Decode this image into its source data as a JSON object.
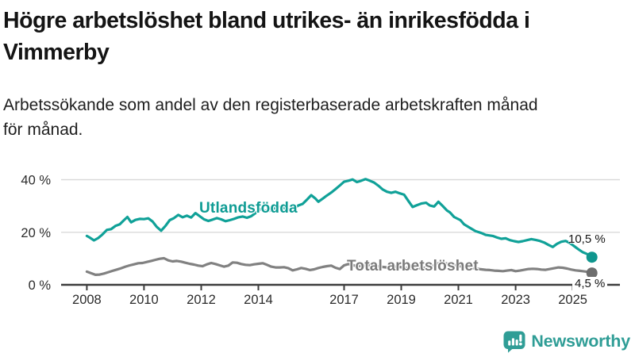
{
  "header": {
    "title": "Högre arbetslöshet bland utrikes- än inrikesfödda i Vimmerby",
    "title_lines": [
      "Högre arbetslöshet bland utrikes- än inrikesfödda i",
      "Vimmerby"
    ],
    "subtitle": "Arbetssökande som andel av den registerbaserade arbetskraften månad för månad.",
    "subtitle_lines": [
      "Arbetssökande som andel av den registerbaserade arbetskraften månad",
      "för månad."
    ]
  },
  "logo": {
    "text": "Newsworthy",
    "icon": "bar-chart-speech-bubble-icon",
    "color": "#2f9d96"
  },
  "chart_data": {
    "type": "line",
    "title": "Högre arbetslöshet bland utrikes- än inrikesfödda i Vimmerby",
    "xlabel": "",
    "ylabel": "",
    "unit": "%",
    "x_range": [
      2007.1,
      2026.65
    ],
    "y_range": [
      0,
      48
    ],
    "x_ticks": [
      2008,
      2010,
      2012,
      2014,
      2017,
      2019,
      2021,
      2023,
      2025
    ],
    "x_tick_labels": [
      "2008",
      "2010",
      "2012",
      "2014",
      "2017",
      "2019",
      "2021",
      "2023",
      "2025"
    ],
    "y_ticks": [
      0,
      20,
      40
    ],
    "y_tick_labels": [
      "0 %",
      "20 %",
      "40 %"
    ],
    "grid": true,
    "legend_position": "inline-labels",
    "style": {
      "axis_color": "#3d3d3d",
      "grid_color": "#d9d9d9",
      "tick_label_color": "#2b2b2b",
      "background": "#ffffff"
    },
    "series": [
      {
        "id": "utlandsfodda",
        "name": "Utlandsfödda",
        "color": "#10a198",
        "dot_color": "#0f968e",
        "end_value": 10.5,
        "end_label": "10,5 %",
        "points": [
          [
            2008,
            18.6
          ],
          [
            2008.1,
            18.0
          ],
          [
            2008.25,
            16.9
          ],
          [
            2008.4,
            17.8
          ],
          [
            2008.55,
            19.2
          ],
          [
            2008.7,
            20.9
          ],
          [
            2008.85,
            21.2
          ],
          [
            2009,
            22.4
          ],
          [
            2009.15,
            23.0
          ],
          [
            2009.3,
            24.6
          ],
          [
            2009.42,
            25.8
          ],
          [
            2009.55,
            23.8
          ],
          [
            2009.7,
            24.7
          ],
          [
            2009.85,
            25.1
          ],
          [
            2010,
            25.0
          ],
          [
            2010.15,
            25.3
          ],
          [
            2010.3,
            24.1
          ],
          [
            2010.45,
            22.0
          ],
          [
            2010.6,
            20.6
          ],
          [
            2010.75,
            22.4
          ],
          [
            2010.9,
            24.6
          ],
          [
            2011.05,
            25.4
          ],
          [
            2011.2,
            26.6
          ],
          [
            2011.35,
            25.7
          ],
          [
            2011.5,
            26.3
          ],
          [
            2011.65,
            25.6
          ],
          [
            2011.8,
            27.3
          ],
          [
            2011.95,
            26.1
          ],
          [
            2012.1,
            24.9
          ],
          [
            2012.25,
            24.3
          ],
          [
            2012.4,
            24.8
          ],
          [
            2012.55,
            25.4
          ],
          [
            2012.7,
            24.9
          ],
          [
            2012.85,
            24.2
          ],
          [
            2013,
            24.6
          ],
          [
            2013.15,
            25.1
          ],
          [
            2013.3,
            25.7
          ],
          [
            2013.45,
            26.0
          ],
          [
            2013.6,
            25.5
          ],
          [
            2013.75,
            26.1
          ],
          [
            2013.9,
            27.3
          ],
          [
            2014.05,
            28.8
          ],
          [
            2014.2,
            28.3
          ],
          [
            2014.35,
            28.0
          ],
          [
            2014.5,
            28.8
          ],
          [
            2014.65,
            29.4
          ],
          [
            2014.8,
            29.7
          ],
          [
            2014.95,
            29.0
          ],
          [
            2015.1,
            28.7
          ],
          [
            2015.25,
            29.2
          ],
          [
            2015.4,
            30.2
          ],
          [
            2015.55,
            30.8
          ],
          [
            2015.7,
            32.4
          ],
          [
            2015.85,
            34.1
          ],
          [
            2016,
            32.8
          ],
          [
            2016.1,
            31.6
          ],
          [
            2016.25,
            32.8
          ],
          [
            2016.4,
            34.0
          ],
          [
            2016.55,
            35.1
          ],
          [
            2016.7,
            36.4
          ],
          [
            2016.85,
            37.8
          ],
          [
            2017,
            39.2
          ],
          [
            2017.15,
            39.6
          ],
          [
            2017.3,
            40.1
          ],
          [
            2017.45,
            39.1
          ],
          [
            2017.6,
            39.6
          ],
          [
            2017.75,
            40.2
          ],
          [
            2017.9,
            39.6
          ],
          [
            2018.05,
            38.9
          ],
          [
            2018.2,
            37.7
          ],
          [
            2018.35,
            36.3
          ],
          [
            2018.5,
            35.4
          ],
          [
            2018.65,
            35.0
          ],
          [
            2018.8,
            35.4
          ],
          [
            2018.95,
            34.8
          ],
          [
            2019.1,
            34.3
          ],
          [
            2019.25,
            31.9
          ],
          [
            2019.4,
            29.6
          ],
          [
            2019.55,
            30.3
          ],
          [
            2019.7,
            30.9
          ],
          [
            2019.87,
            31.2
          ],
          [
            2020,
            30.2
          ],
          [
            2020.15,
            29.8
          ],
          [
            2020.3,
            31.6
          ],
          [
            2020.45,
            30.0
          ],
          [
            2020.6,
            28.3
          ],
          [
            2020.7,
            27.6
          ],
          [
            2020.85,
            25.8
          ],
          [
            2021.07,
            24.6
          ],
          [
            2021.2,
            23.0
          ],
          [
            2021.4,
            21.7
          ],
          [
            2021.6,
            20.4
          ],
          [
            2021.8,
            19.7
          ],
          [
            2021.95,
            19.0
          ],
          [
            2022.2,
            18.6
          ],
          [
            2022.35,
            18.0
          ],
          [
            2022.5,
            17.5
          ],
          [
            2022.65,
            17.7
          ],
          [
            2022.8,
            17.0
          ],
          [
            2022.95,
            16.6
          ],
          [
            2023.1,
            16.3
          ],
          [
            2023.25,
            16.6
          ],
          [
            2023.4,
            17.0
          ],
          [
            2023.55,
            17.4
          ],
          [
            2023.7,
            17.1
          ],
          [
            2023.85,
            16.7
          ],
          [
            2024,
            16.1
          ],
          [
            2024.15,
            15.2
          ],
          [
            2024.3,
            14.4
          ],
          [
            2024.45,
            15.6
          ],
          [
            2024.6,
            16.4
          ],
          [
            2024.75,
            16.7
          ],
          [
            2024.9,
            15.9
          ],
          [
            2025.05,
            14.7
          ],
          [
            2025.2,
            13.5
          ],
          [
            2025.35,
            12.4
          ],
          [
            2025.5,
            11.7
          ],
          [
            2025.67,
            10.5
          ]
        ]
      },
      {
        "id": "total",
        "name": "Total arbetslöshet",
        "color": "#818181",
        "dot_color": "#6e6e6e",
        "end_value": 4.5,
        "end_label": "4,5 %",
        "points": [
          [
            2008,
            5.0
          ],
          [
            2008.15,
            4.4
          ],
          [
            2008.3,
            3.8
          ],
          [
            2008.45,
            3.9
          ],
          [
            2008.6,
            4.3
          ],
          [
            2008.75,
            4.8
          ],
          [
            2008.9,
            5.3
          ],
          [
            2009.05,
            5.8
          ],
          [
            2009.2,
            6.3
          ],
          [
            2009.35,
            6.9
          ],
          [
            2009.5,
            7.4
          ],
          [
            2009.65,
            7.8
          ],
          [
            2009.8,
            8.2
          ],
          [
            2009.95,
            8.3
          ],
          [
            2010.1,
            8.7
          ],
          [
            2010.25,
            9.1
          ],
          [
            2010.4,
            9.5
          ],
          [
            2010.55,
            9.9
          ],
          [
            2010.7,
            10.1
          ],
          [
            2010.85,
            9.3
          ],
          [
            2011,
            8.9
          ],
          [
            2011.15,
            9.1
          ],
          [
            2011.3,
            8.8
          ],
          [
            2011.45,
            8.4
          ],
          [
            2011.6,
            8.0
          ],
          [
            2011.75,
            7.7
          ],
          [
            2011.9,
            7.3
          ],
          [
            2012.05,
            7.1
          ],
          [
            2012.2,
            7.8
          ],
          [
            2012.35,
            8.3
          ],
          [
            2012.5,
            7.9
          ],
          [
            2012.65,
            7.4
          ],
          [
            2012.8,
            6.9
          ],
          [
            2012.95,
            7.3
          ],
          [
            2013.1,
            8.5
          ],
          [
            2013.25,
            8.4
          ],
          [
            2013.4,
            7.9
          ],
          [
            2013.55,
            7.6
          ],
          [
            2013.7,
            7.5
          ],
          [
            2013.85,
            7.8
          ],
          [
            2014,
            8.0
          ],
          [
            2014.15,
            8.2
          ],
          [
            2014.3,
            7.6
          ],
          [
            2014.45,
            6.9
          ],
          [
            2014.6,
            6.6
          ],
          [
            2014.75,
            6.6
          ],
          [
            2014.9,
            6.7
          ],
          [
            2015.05,
            6.3
          ],
          [
            2015.2,
            5.5
          ],
          [
            2015.35,
            5.9
          ],
          [
            2015.5,
            6.4
          ],
          [
            2015.65,
            6.1
          ],
          [
            2015.8,
            5.6
          ],
          [
            2015.95,
            5.9
          ],
          [
            2016.1,
            6.4
          ],
          [
            2016.25,
            6.8
          ],
          [
            2016.4,
            7.1
          ],
          [
            2016.55,
            7.3
          ],
          [
            2016.7,
            6.5
          ],
          [
            2016.85,
            6.0
          ],
          [
            2017,
            7.4
          ],
          [
            2017.15,
            7.9
          ],
          [
            2017.3,
            7.5
          ],
          [
            2017.45,
            7.1
          ],
          [
            2017.6,
            7.2
          ],
          [
            2017.75,
            7.4
          ],
          [
            2017.9,
            7.5
          ],
          [
            2018.05,
            7.3
          ],
          [
            2018.2,
            7.0
          ],
          [
            2018.35,
            6.8
          ],
          [
            2018.5,
            6.6
          ],
          [
            2018.65,
            6.7
          ],
          [
            2018.8,
            6.9
          ],
          [
            2018.95,
            6.8
          ],
          [
            2019.1,
            6.5
          ],
          [
            2019.25,
            6.3
          ],
          [
            2019.4,
            6.1
          ],
          [
            2019.55,
            6.1
          ],
          [
            2019.7,
            6.3
          ],
          [
            2019.85,
            6.5
          ],
          [
            2020,
            6.7
          ],
          [
            2020.15,
            7.5
          ],
          [
            2020.3,
            8.2
          ],
          [
            2020.45,
            8.4
          ],
          [
            2020.6,
            8.1
          ],
          [
            2020.75,
            7.8
          ],
          [
            2020.9,
            7.4
          ],
          [
            2021.05,
            7.1
          ],
          [
            2021.2,
            6.9
          ],
          [
            2021.35,
            6.6
          ],
          [
            2021.5,
            6.3
          ],
          [
            2021.65,
            6.1
          ],
          [
            2021.8,
            5.9
          ],
          [
            2021.95,
            5.7
          ],
          [
            2022.1,
            5.6
          ],
          [
            2022.25,
            5.4
          ],
          [
            2022.4,
            5.3
          ],
          [
            2022.55,
            5.2
          ],
          [
            2022.7,
            5.4
          ],
          [
            2022.85,
            5.6
          ],
          [
            2023,
            5.2
          ],
          [
            2023.15,
            5.4
          ],
          [
            2023.3,
            5.7
          ],
          [
            2023.45,
            6.0
          ],
          [
            2023.6,
            6.1
          ],
          [
            2023.75,
            6.0
          ],
          [
            2023.9,
            5.8
          ],
          [
            2024.05,
            5.7
          ],
          [
            2024.2,
            6.0
          ],
          [
            2024.35,
            6.3
          ],
          [
            2024.5,
            6.6
          ],
          [
            2024.65,
            6.5
          ],
          [
            2024.8,
            6.2
          ],
          [
            2024.95,
            5.8
          ],
          [
            2025.1,
            5.5
          ],
          [
            2025.25,
            5.3
          ],
          [
            2025.4,
            5.1
          ],
          [
            2025.55,
            4.9
          ],
          [
            2025.67,
            4.5
          ]
        ]
      }
    ]
  }
}
